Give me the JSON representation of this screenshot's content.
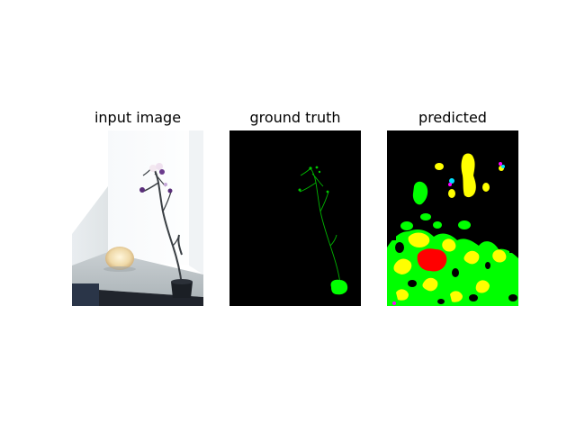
{
  "figure": {
    "panels": [
      {
        "title": "input image"
      },
      {
        "title": "ground truth"
      },
      {
        "title": "predicted"
      }
    ],
    "colors": {
      "background": "#000000",
      "green": "#00ff00",
      "yellow": "#ffff00",
      "red": "#ff0000",
      "cyan": "#00e0ff",
      "magenta": "#ff00ff"
    }
  }
}
